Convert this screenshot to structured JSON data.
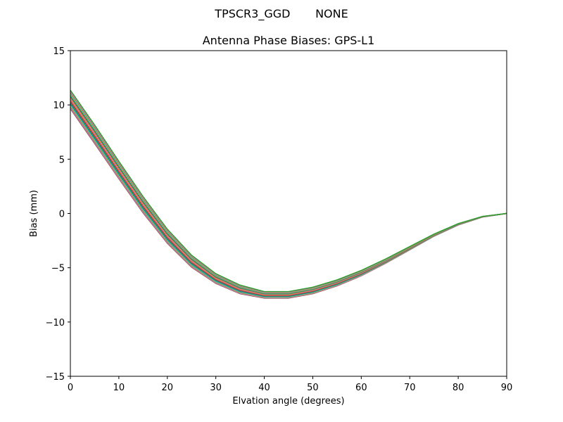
{
  "figure": {
    "suptitle": "TPSCR3_GGD       NONE",
    "title": "Antenna Phase Biases: GPS-L1"
  },
  "chart_data": {
    "type": "line",
    "title": "Antenna Phase Biases: GPS-L1",
    "suptitle": "TPSCR3_GGD       NONE",
    "xlabel": "Elvation angle (degrees)",
    "ylabel": "Bias (mm)",
    "xlim": [
      0,
      90
    ],
    "ylim": [
      -15,
      15
    ],
    "xticks": [
      0,
      10,
      20,
      30,
      40,
      50,
      60,
      70,
      80,
      90
    ],
    "yticks": [
      -15,
      -10,
      -5,
      0,
      5,
      10,
      15
    ],
    "ytick_labels": [
      "−15",
      "−10",
      "−5",
      "0",
      "5",
      "10",
      "15"
    ],
    "grid": false,
    "legend": null,
    "x": [
      0,
      5,
      10,
      15,
      20,
      25,
      30,
      35,
      40,
      45,
      50,
      55,
      60,
      65,
      70,
      75,
      80,
      85,
      90
    ],
    "center_series": [
      10.5,
      7.3,
      4.0,
      0.8,
      -2.1,
      -4.4,
      -6.0,
      -7.0,
      -7.5,
      -7.5,
      -7.1,
      -6.4,
      -5.5,
      -4.4,
      -3.2,
      -2.0,
      -1.0,
      -0.3,
      0.0
    ],
    "band_spread": [
      0.85,
      0.85,
      0.8,
      0.75,
      0.65,
      0.55,
      0.45,
      0.4,
      0.3,
      0.3,
      0.3,
      0.28,
      0.25,
      0.2,
      0.15,
      0.1,
      0.06,
      0.03,
      0.0
    ],
    "series_colors": [
      "#8c564b",
      "#e377c2",
      "#7f7f7f",
      "#bcbd22",
      "#17becf",
      "#1f77b4",
      "#2ca02c",
      "#d62728",
      "#9467bd",
      "#ff7f0e",
      "#e377c2",
      "#2ca02c",
      "#8c564b",
      "#17becf",
      "#bcbd22",
      "#7f7f7f",
      "#e377c2",
      "#2ca02c"
    ],
    "series_note": "Many overlapping azimuth series forming a narrow multicolored band around the center curve"
  }
}
